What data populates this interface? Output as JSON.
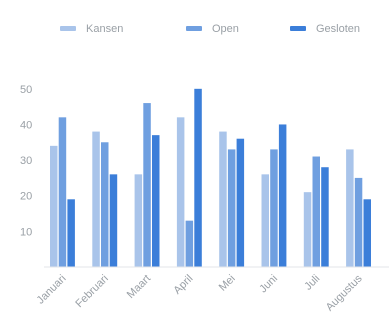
{
  "chart_data": {
    "type": "bar",
    "title": "",
    "xlabel": "",
    "ylabel": "",
    "ylim": [
      0,
      55
    ],
    "yticks": [
      10,
      20,
      30,
      40,
      50
    ],
    "grid": false,
    "legend_position": "top",
    "categories": [
      "Januari",
      "Februari",
      "Maart",
      "April",
      "Mei",
      "Juni",
      "Juli",
      "Augustus"
    ],
    "series": [
      {
        "name": "Kansen",
        "color": "#a9c4ea",
        "values": [
          34,
          38,
          26,
          42,
          38,
          26,
          21,
          33
        ]
      },
      {
        "name": "Open",
        "color": "#6f9fe0",
        "values": [
          42,
          35,
          46,
          13,
          33,
          33,
          31,
          25
        ]
      },
      {
        "name": "Gesloten",
        "color": "#3b7ed9",
        "values": [
          19,
          26,
          37,
          50,
          36,
          40,
          28,
          19
        ]
      }
    ]
  }
}
